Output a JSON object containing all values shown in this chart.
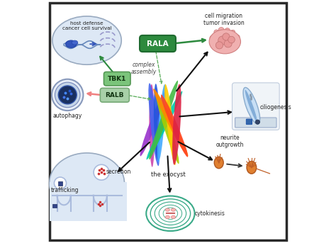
{
  "bg_color": "#ffffff",
  "border_color": "#2a2a2a",
  "rala_color": "#2d8a3e",
  "rala_text": "RALA",
  "tbk1_color": "#7bc47b",
  "tbk1_text": "TBK1",
  "ralb_color": "#a8d0a8",
  "ralb_text": "RALB",
  "green_arrow": "#2d8a3e",
  "pink_arrow": "#f08080",
  "black_arrow": "#111111",
  "dashed_green": "#55aa55",
  "exo_colors": [
    "#cc44aa",
    "#9933cc",
    "#4466ee",
    "#2255dd",
    "#44aaff",
    "#00ccaa",
    "#44bb44",
    "#aacc00",
    "#ffcc00",
    "#ff8800",
    "#ff4422",
    "#dd2244"
  ],
  "tumor_color": "#f0b0b0",
  "tumor_edge": "#d08080",
  "cilia_color": "#c8dff5",
  "cilia_base": "#7799bb",
  "neuron_color": "#e07830",
  "neuron_edge": "#b05520",
  "cyto_edge": "#3aaa88",
  "cyto_chr": "#ffaaaa",
  "traffic_bg": "#dde8f5",
  "traffic_edge": "#99aac0",
  "membrane_color": "#aabbdd",
  "host_bg": "#dde8f5",
  "host_edge": "#99aac0",
  "auto_outer": "#1a2a5e",
  "auto_inner": "#0d1a44"
}
